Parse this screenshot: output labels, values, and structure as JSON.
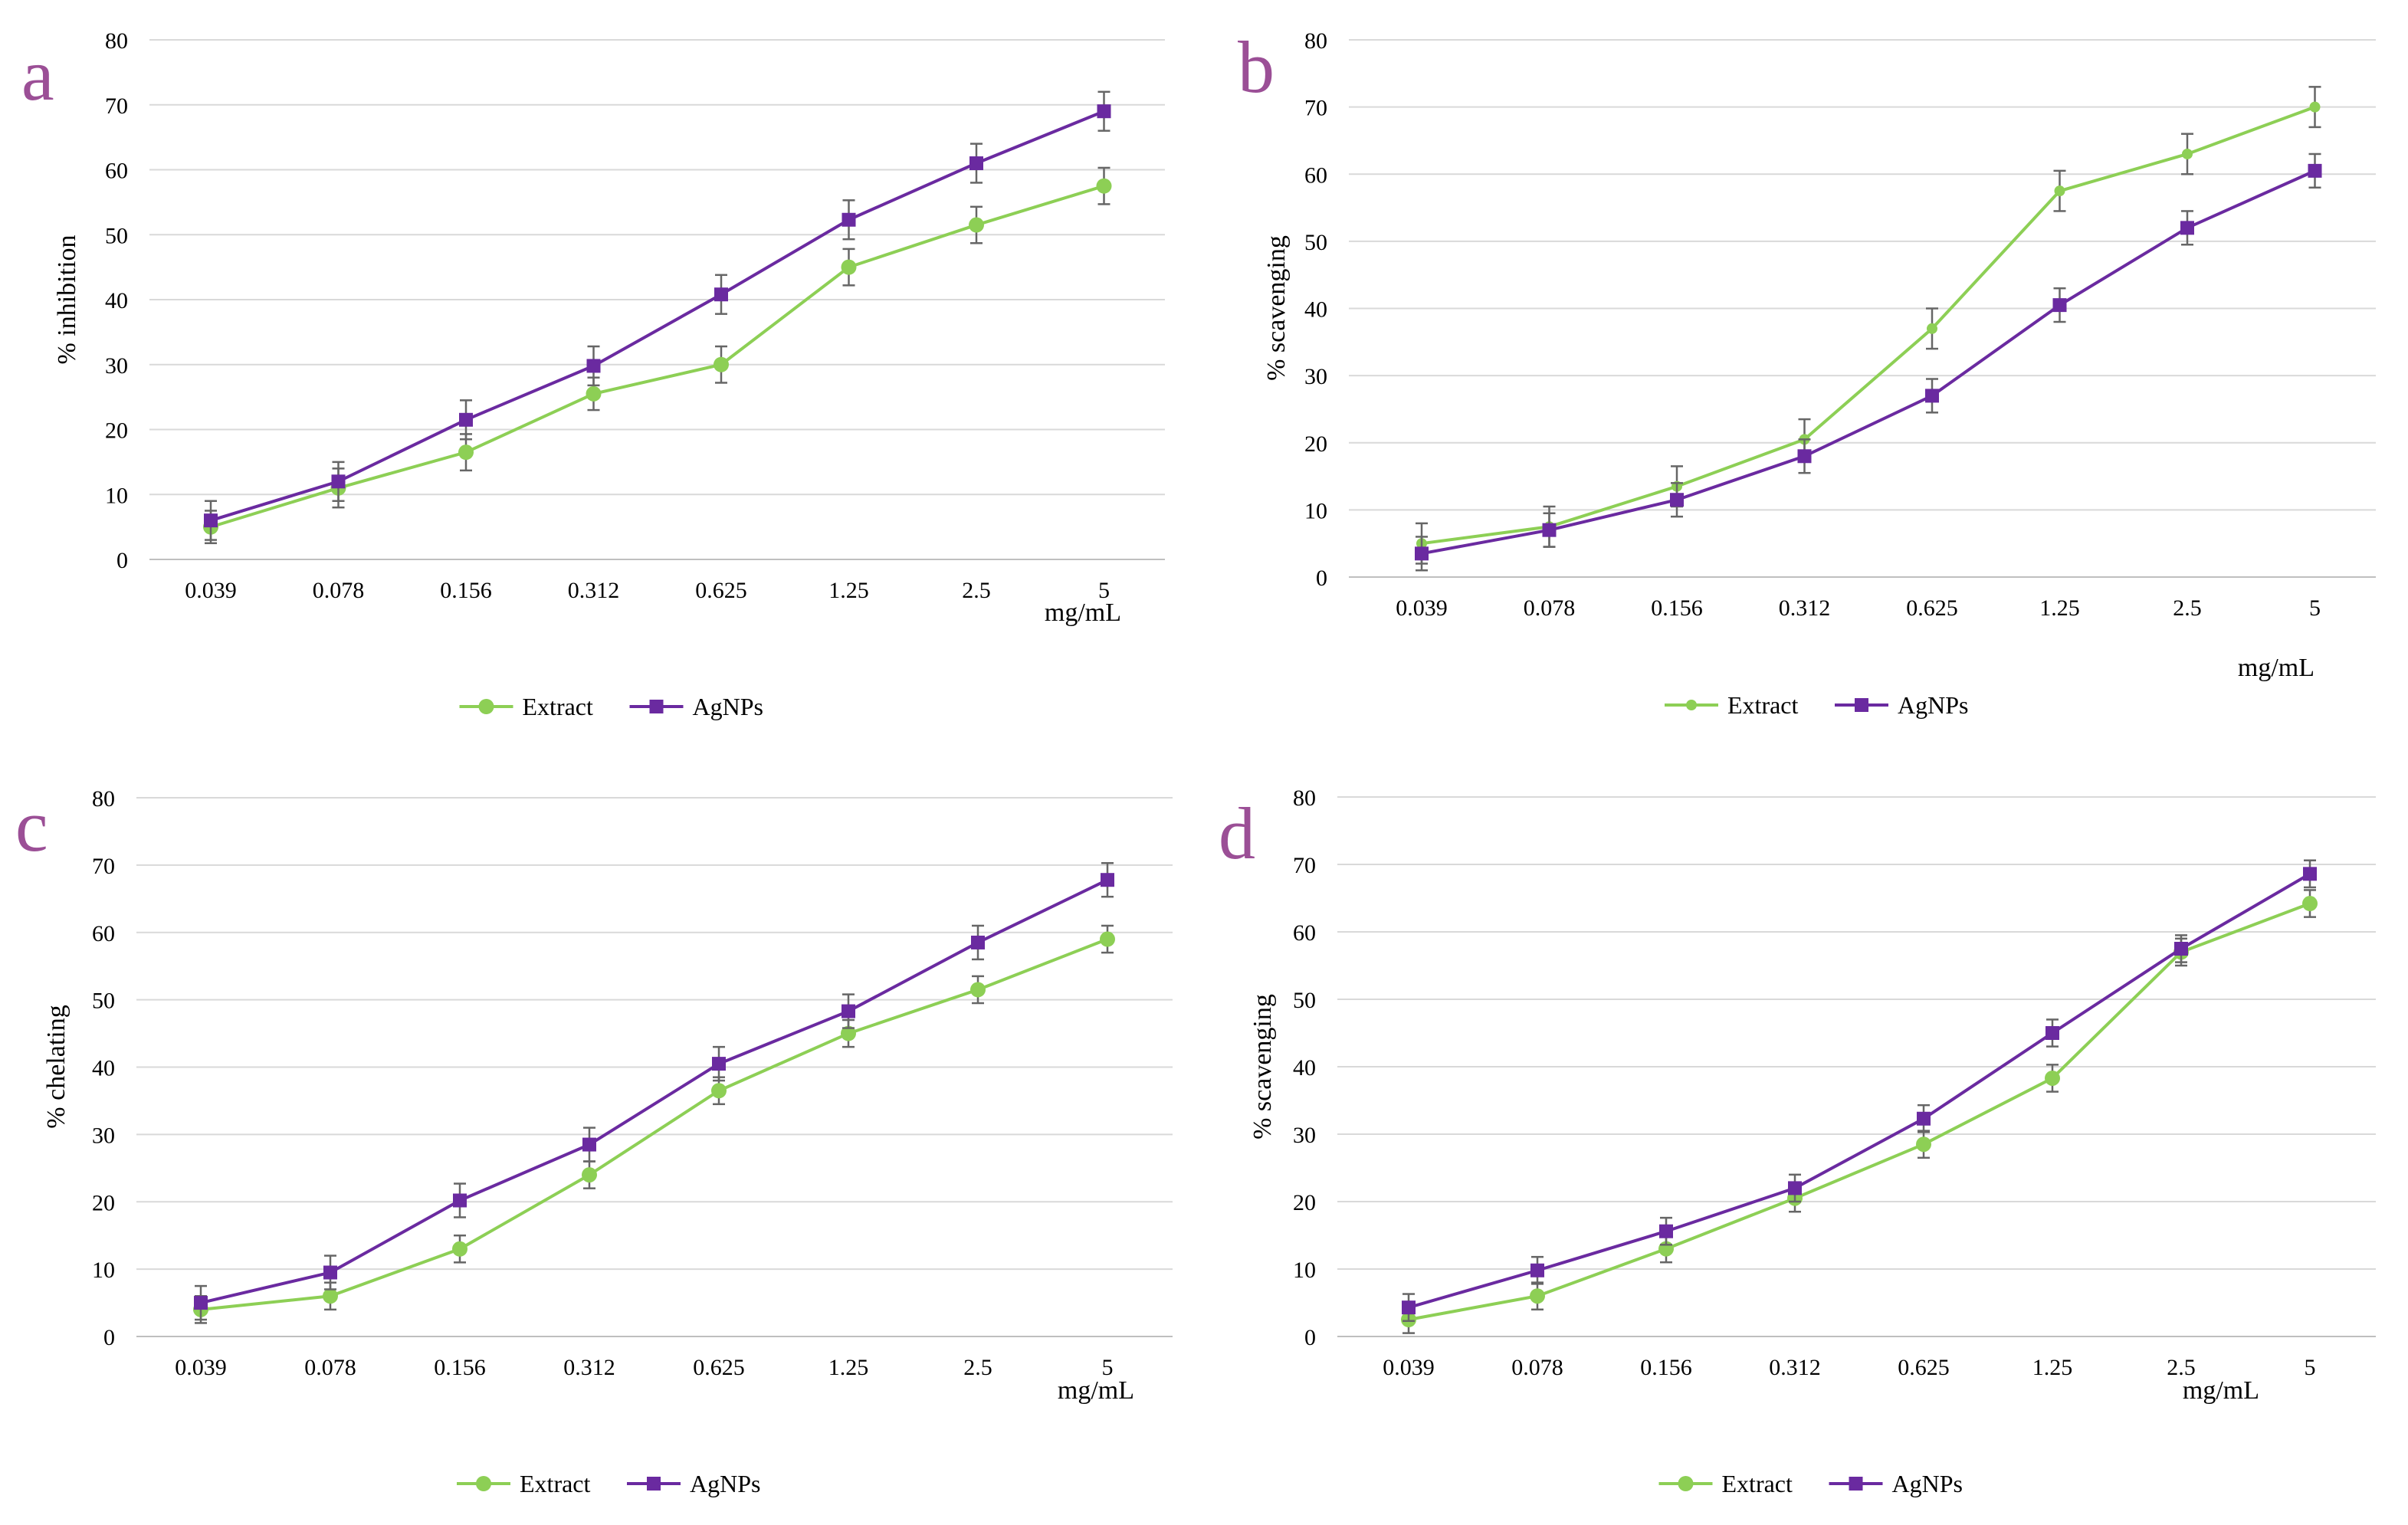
{
  "colors": {
    "extract": "#8dcf55",
    "agnps": "#6a2aa0",
    "grid": "#d9d9d9",
    "errorbar": "#666666",
    "panel_letter": "#9b4f96"
  },
  "legend": {
    "extract_label": "Extract",
    "agnps_label": "AgNPs"
  },
  "chart_data": [
    {
      "type": "line",
      "panel_label": "a",
      "title": "",
      "ylabel": "% inhibition",
      "xlabel": "mg/mL",
      "categories": [
        "0.039",
        "0.078",
        "0.156",
        "0.312",
        "0.625",
        "1.25",
        "2.5",
        "5"
      ],
      "ylim": [
        0,
        80
      ],
      "yticks": [
        "0",
        "10",
        "20",
        "30",
        "40",
        "50",
        "60",
        "70",
        "80"
      ],
      "grid": true,
      "legend": "bottom",
      "series": [
        {
          "name": "Extract",
          "marker": "circle",
          "values": [
            5,
            11,
            16.5,
            25.5,
            30,
            45,
            51.5,
            57.5
          ],
          "errors": [
            2.5,
            3,
            2.8,
            2.5,
            2.8,
            2.8,
            2.8,
            2.8
          ]
        },
        {
          "name": "AgNPs",
          "marker": "square",
          "values": [
            6,
            12,
            21.5,
            29.8,
            40.8,
            52.3,
            61,
            69
          ],
          "errors": [
            3,
            3,
            3,
            3,
            3,
            3,
            3,
            3
          ]
        }
      ]
    },
    {
      "type": "line",
      "panel_label": "b",
      "title": "",
      "ylabel": "% scavenging",
      "xlabel": "mg/mL",
      "categories": [
        "0.039",
        "0.078",
        "0.156",
        "0.312",
        "0.625",
        "1.25",
        "2.5",
        "5"
      ],
      "ylim": [
        0,
        80
      ],
      "yticks": [
        "0",
        "10",
        "20",
        "30",
        "40",
        "50",
        "60",
        "70",
        "80"
      ],
      "grid": true,
      "legend": "bottom",
      "series": [
        {
          "name": "Extract",
          "marker": "circle-small",
          "values": [
            5,
            7.5,
            13.5,
            20.5,
            37,
            57.5,
            63,
            70
          ],
          "errors": [
            3,
            3,
            3,
            3,
            3,
            3,
            3,
            3
          ]
        },
        {
          "name": "AgNPs",
          "marker": "square",
          "values": [
            3.5,
            7,
            11.5,
            18,
            27,
            40.5,
            52,
            60.5
          ],
          "errors": [
            2.5,
            2.5,
            2.5,
            2.5,
            2.5,
            2.5,
            2.5,
            2.5
          ]
        }
      ]
    },
    {
      "type": "line",
      "panel_label": "c",
      "title": "",
      "ylabel": "% chelating",
      "xlabel": "mg/mL",
      "categories": [
        "0.039",
        "0.078",
        "0.156",
        "0.312",
        "0.625",
        "1.25",
        "2.5",
        "5"
      ],
      "ylim": [
        0,
        80
      ],
      "yticks": [
        "0",
        "10",
        "20",
        "30",
        "40",
        "50",
        "60",
        "70",
        "80"
      ],
      "grid": true,
      "legend": "bottom",
      "series": [
        {
          "name": "Extract",
          "marker": "circle",
          "values": [
            4,
            6,
            13,
            24,
            36.5,
            45,
            51.5,
            59
          ],
          "errors": [
            2,
            2,
            2,
            2,
            2,
            2,
            2,
            2
          ]
        },
        {
          "name": "AgNPs",
          "marker": "square",
          "values": [
            5,
            9.5,
            20.2,
            28.5,
            40.5,
            48.3,
            58.5,
            67.8
          ],
          "errors": [
            2.5,
            2.5,
            2.5,
            2.5,
            2.5,
            2.5,
            2.5,
            2.5
          ]
        }
      ]
    },
    {
      "type": "line",
      "panel_label": "d",
      "title": "",
      "ylabel": "% scavenging",
      "xlabel": "mg/mL",
      "categories": [
        "0.039",
        "0.078",
        "0.156",
        "0.312",
        "0.625",
        "1.25",
        "2.5",
        "5"
      ],
      "ylim": [
        0,
        80
      ],
      "yticks": [
        "0",
        "10",
        "20",
        "30",
        "40",
        "50",
        "60",
        "70",
        "80"
      ],
      "grid": true,
      "legend": "bottom",
      "series": [
        {
          "name": "Extract",
          "marker": "circle",
          "values": [
            2.5,
            6,
            13,
            20.5,
            28.5,
            38.3,
            57,
            64.2
          ],
          "errors": [
            2,
            2,
            2,
            2,
            2,
            2,
            2,
            2
          ]
        },
        {
          "name": "AgNPs",
          "marker": "square",
          "values": [
            4.3,
            9.8,
            15.6,
            22,
            32.3,
            45,
            57.5,
            68.6
          ],
          "errors": [
            2,
            2,
            2,
            2,
            2,
            2,
            2,
            2
          ]
        }
      ]
    }
  ]
}
